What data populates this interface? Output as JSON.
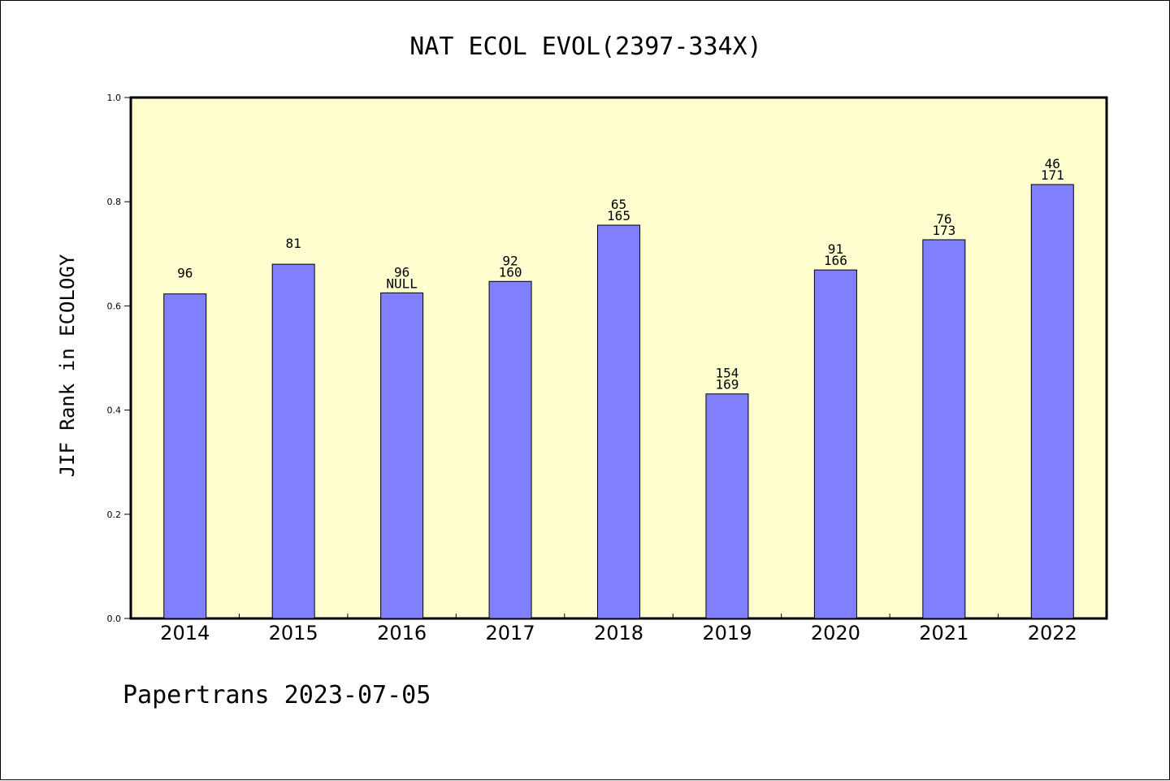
{
  "chart_data": {
    "type": "bar",
    "title": "NAT ECOL EVOL(2397-334X)",
    "ylabel": "JIF Rank in ECOLOGY",
    "xlabel": "",
    "ylim": [
      0,
      1
    ],
    "yticks": [
      "0.0",
      "0.2",
      "0.4",
      "0.6",
      "0.8",
      "1.0"
    ],
    "categories": [
      "2014",
      "2015",
      "2016",
      "2017",
      "2018",
      "2019",
      "2020",
      "2021",
      "2022"
    ],
    "values": [
      0.623,
      0.68,
      0.625,
      0.647,
      0.755,
      0.431,
      0.669,
      0.727,
      0.833
    ],
    "rank": [
      "96",
      "81",
      "96",
      "92",
      "65",
      "154",
      "91",
      "76",
      "46"
    ],
    "total": [
      "",
      "",
      "NULL",
      "160",
      "165",
      "169",
      "166",
      "173",
      "171"
    ],
    "grid": false,
    "colors": {
      "bar": "#8080ff",
      "plot_background": "#ffffd0"
    }
  },
  "footer": "Papertrans 2023-07-05"
}
